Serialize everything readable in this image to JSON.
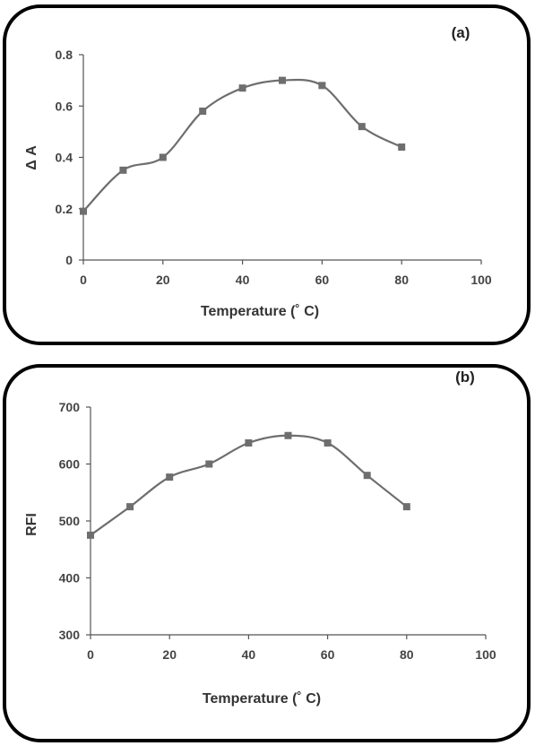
{
  "chart_data": [
    {
      "type": "line",
      "panel_label": "(a)",
      "xlabel": "Temperature (˚ C)",
      "ylabel": "Δ A",
      "x": [
        0,
        10,
        20,
        30,
        40,
        50,
        60,
        70,
        80
      ],
      "series": [
        {
          "values": [
            0.19,
            0.35,
            0.4,
            0.58,
            0.67,
            0.7,
            0.68,
            0.52,
            0.44
          ]
        }
      ],
      "xlim": [
        0,
        100
      ],
      "ylim": [
        0,
        0.8
      ],
      "xticks": [
        0,
        20,
        40,
        60,
        80,
        100
      ],
      "yticks": [
        0,
        0.2,
        0.4,
        0.6,
        0.8
      ],
      "xtick_labels": [
        "0",
        "20",
        "40",
        "60",
        "80",
        "100"
      ],
      "ytick_labels": [
        "0",
        "0.2",
        "0.4",
        "0.6",
        "0.8"
      ],
      "smooth": true,
      "marker": "square",
      "grid": false,
      "line_color": "#6e6e6e"
    },
    {
      "type": "line",
      "panel_label": "(b)",
      "xlabel": "Temperature (˚ C)",
      "ylabel": "RFI",
      "x": [
        0,
        10,
        20,
        30,
        40,
        50,
        60,
        70,
        80
      ],
      "series": [
        {
          "values": [
            475,
            525,
            577,
            600,
            637,
            650,
            637,
            580,
            525
          ]
        }
      ],
      "xlim": [
        0,
        100
      ],
      "ylim": [
        300,
        700
      ],
      "xticks": [
        0,
        20,
        40,
        60,
        80,
        100
      ],
      "yticks": [
        300,
        400,
        500,
        600,
        700
      ],
      "xtick_labels": [
        "0",
        "20",
        "40",
        "60",
        "80",
        "100"
      ],
      "ytick_labels": [
        "300",
        "400",
        "500",
        "600",
        "700"
      ],
      "smooth": true,
      "marker": "square",
      "grid": false,
      "line_color": "#6e6e6e"
    }
  ]
}
